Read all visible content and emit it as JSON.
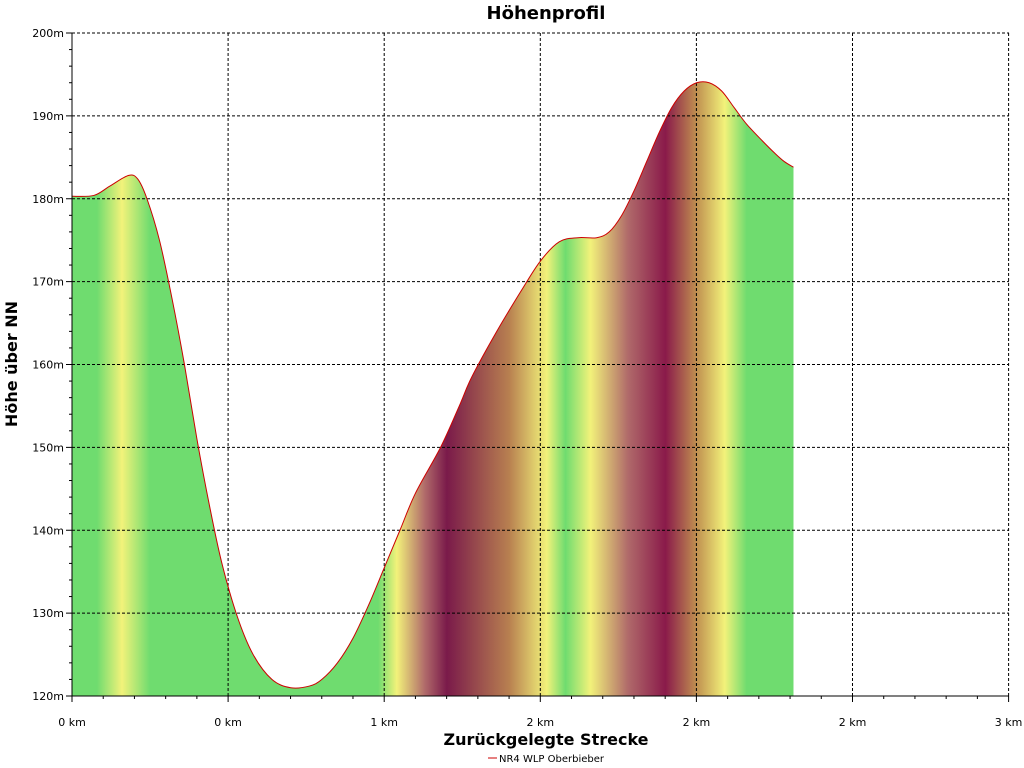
{
  "chart_data": {
    "type": "area",
    "title": "Höhenprofil",
    "xlabel": "Zurückgelegte Strecke",
    "ylabel": "Höhe über NN",
    "x_tick_labels": [
      "0 km",
      "0 km",
      "1 km",
      "2 km",
      "2 km",
      "2 km",
      "3 km"
    ],
    "y_ticks": [
      120,
      130,
      140,
      150,
      160,
      170,
      180,
      190,
      200
    ],
    "y_tick_labels": [
      "120m",
      "130m",
      "140m",
      "150m",
      "160m",
      "170m",
      "180m",
      "190m",
      "200m"
    ],
    "ylim": [
      120,
      200
    ],
    "xlim": [
      0,
      3
    ],
    "grid": true,
    "legend_position": "bottom-center",
    "colors": {
      "line": "#cc0000",
      "green": "#6fdc6f",
      "yellow": "#f2f27a",
      "maroon": "#8a1a4a"
    },
    "series": [
      {
        "name": "NR4 WLP Oberbieber",
        "x": [
          0,
          0.07,
          0.12,
          0.18,
          0.21,
          0.24,
          0.28,
          0.32,
          0.36,
          0.4,
          0.44,
          0.48,
          0.53,
          0.58,
          0.64,
          0.7,
          0.76,
          0.8,
          0.85,
          0.9,
          0.95,
          1.0,
          1.05,
          1.1,
          1.18,
          1.24,
          1.28,
          1.36,
          1.44,
          1.5,
          1.56,
          1.62,
          1.68,
          1.72,
          1.76,
          1.8,
          1.84,
          1.88,
          1.92,
          1.96,
          2.0,
          2.04,
          2.08,
          2.12,
          2.16,
          2.21,
          2.25,
          2.28,
          2.31
        ],
        "y": [
          180.3,
          180.4,
          181.5,
          182.8,
          182.4,
          180.0,
          175.0,
          168.0,
          160.0,
          151.0,
          143.0,
          136.0,
          129.5,
          125.0,
          122.0,
          121.0,
          121.2,
          122.0,
          124.0,
          127.0,
          131.0,
          135.5,
          140.0,
          144.5,
          150.0,
          155.0,
          158.5,
          164.0,
          169.0,
          172.5,
          174.8,
          175.3,
          175.3,
          176.0,
          178.0,
          181.0,
          184.5,
          188.0,
          191.0,
          193.0,
          194.0,
          194.0,
          193.0,
          191.0,
          189.0,
          187.0,
          185.5,
          184.5,
          183.8
        ]
      }
    ],
    "color_bands": [
      {
        "x": 0.0,
        "color": "#6fdc6f"
      },
      {
        "x": 0.08,
        "color": "#6fdc6f"
      },
      {
        "x": 0.16,
        "color": "#f2f27a"
      },
      {
        "x": 0.25,
        "color": "#6fdc6f"
      },
      {
        "x": 0.98,
        "color": "#6fdc6f"
      },
      {
        "x": 1.04,
        "color": "#f2f27a"
      },
      {
        "x": 1.13,
        "color": "#b06a6a"
      },
      {
        "x": 1.2,
        "color": "#7a1a4a"
      },
      {
        "x": 1.4,
        "color": "#b88050"
      },
      {
        "x": 1.52,
        "color": "#f2f27a"
      },
      {
        "x": 1.58,
        "color": "#6fdc6f"
      },
      {
        "x": 1.66,
        "color": "#f2f27a"
      },
      {
        "x": 1.78,
        "color": "#b06a6a"
      },
      {
        "x": 1.9,
        "color": "#8a1a4a"
      },
      {
        "x": 2.0,
        "color": "#c09050"
      },
      {
        "x": 2.09,
        "color": "#f2f27a"
      },
      {
        "x": 2.16,
        "color": "#6fdc6f"
      },
      {
        "x": 2.31,
        "color": "#6fdc6f"
      }
    ]
  }
}
